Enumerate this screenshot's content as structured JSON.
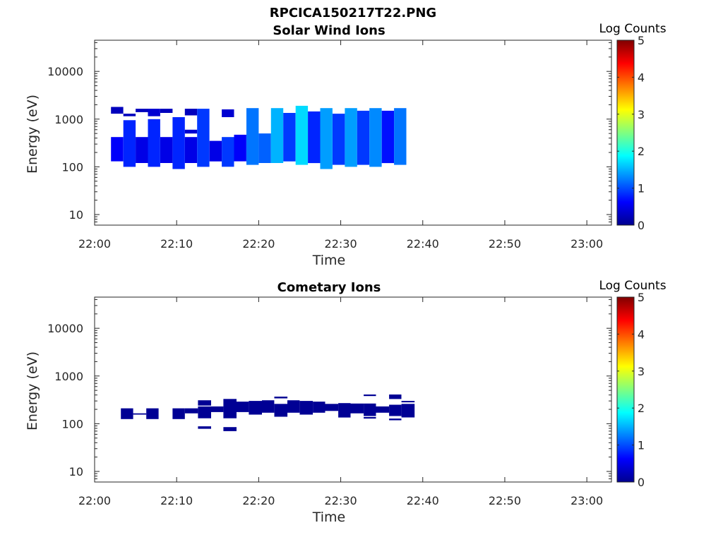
{
  "figure_title": "RPCICA150217T22.PNG",
  "chart_data": [
    {
      "type": "heatmap",
      "title": "Solar Wind Ions",
      "xlabel": "Time",
      "ylabel": "Energy (eV)",
      "x_ticks": [
        "22:00",
        "22:10",
        "22:20",
        "22:30",
        "22:40",
        "22:50",
        "23:00"
      ],
      "xlim": [
        "22:00",
        "23:03"
      ],
      "y_scale": "log",
      "y_ticks": [
        "10",
        "100",
        "1000",
        "10000"
      ],
      "ylim": [
        6,
        45000
      ],
      "colorbar": {
        "label": "Log Counts",
        "min": 0,
        "max": 5,
        "ticks": [
          "0",
          "1",
          "2",
          "3",
          "4",
          "5"
        ],
        "colormap": "jet"
      },
      "cells": [
        {
          "t0": "22:02",
          "t1": "22:03.5",
          "e0": 130,
          "e1": 420,
          "v": 0.6
        },
        {
          "t0": "22:02",
          "t1": "22:03.5",
          "e0": 1300,
          "e1": 1800,
          "v": 0.3
        },
        {
          "t0": "22:03.5",
          "t1": "22:05",
          "e0": 100,
          "e1": 950,
          "v": 0.8
        },
        {
          "t0": "22:03.5",
          "t1": "22:05",
          "e0": 1150,
          "e1": 1300,
          "v": 0.3
        },
        {
          "t0": "22:05",
          "t1": "22:06.5",
          "e0": 120,
          "e1": 420,
          "v": 0.5
        },
        {
          "t0": "22:05",
          "t1": "22:06.5",
          "e0": 1400,
          "e1": 1650,
          "v": 0.3
        },
        {
          "t0": "22:06.5",
          "t1": "22:08",
          "e0": 100,
          "e1": 1000,
          "v": 0.8
        },
        {
          "t0": "22:06.5",
          "t1": "22:08",
          "e0": 1150,
          "e1": 1650,
          "v": 0.4
        },
        {
          "t0": "22:08",
          "t1": "22:09.5",
          "e0": 120,
          "e1": 420,
          "v": 0.5
        },
        {
          "t0": "22:08",
          "t1": "22:09.5",
          "e0": 1350,
          "e1": 1650,
          "v": 0.3
        },
        {
          "t0": "22:09.5",
          "t1": "22:11",
          "e0": 90,
          "e1": 1100,
          "v": 0.8
        },
        {
          "t0": "22:11",
          "t1": "22:12.5",
          "e0": 120,
          "e1": 420,
          "v": 0.5
        },
        {
          "t0": "22:11",
          "t1": "22:12.5",
          "e0": 500,
          "e1": 600,
          "v": 0.4
        },
        {
          "t0": "22:11",
          "t1": "22:12.5",
          "e0": 1200,
          "e1": 1650,
          "v": 0.3
        },
        {
          "t0": "22:12.5",
          "t1": "22:14",
          "e0": 100,
          "e1": 1650,
          "v": 0.9
        },
        {
          "t0": "22:14",
          "t1": "22:15.5",
          "e0": 130,
          "e1": 350,
          "v": 0.5
        },
        {
          "t0": "22:15.5",
          "t1": "22:17",
          "e0": 100,
          "e1": 420,
          "v": 0.9
        },
        {
          "t0": "22:15.5",
          "t1": "22:17",
          "e0": 1100,
          "e1": 1600,
          "v": 0.4
        },
        {
          "t0": "22:17",
          "t1": "22:18.5",
          "e0": 130,
          "e1": 470,
          "v": 0.6
        },
        {
          "t0": "22:18.5",
          "t1": "22:20",
          "e0": 110,
          "e1": 1700,
          "v": 1.2
        },
        {
          "t0": "22:20",
          "t1": "22:21.5",
          "e0": 120,
          "e1": 500,
          "v": 1.1
        },
        {
          "t0": "22:21.5",
          "t1": "22:23",
          "e0": 120,
          "e1": 1700,
          "v": 1.5
        },
        {
          "t0": "22:23",
          "t1": "22:24.5",
          "e0": 130,
          "e1": 1350,
          "v": 0.9
        },
        {
          "t0": "22:24.5",
          "t1": "22:26",
          "e0": 110,
          "e1": 1900,
          "v": 1.7
        },
        {
          "t0": "22:26",
          "t1": "22:27.5",
          "e0": 120,
          "e1": 1450,
          "v": 0.8
        },
        {
          "t0": "22:27.5",
          "t1": "22:29",
          "e0": 90,
          "e1": 1700,
          "v": 1.4
        },
        {
          "t0": "22:29",
          "t1": "22:30.5",
          "e0": 110,
          "e1": 1300,
          "v": 0.9
        },
        {
          "t0": "22:30.5",
          "t1": "22:32",
          "e0": 100,
          "e1": 1700,
          "v": 1.4
        },
        {
          "t0": "22:32",
          "t1": "22:33.5",
          "e0": 110,
          "e1": 1500,
          "v": 0.9
        },
        {
          "t0": "22:33.5",
          "t1": "22:35",
          "e0": 100,
          "e1": 1700,
          "v": 1.3
        },
        {
          "t0": "22:35",
          "t1": "22:36.5",
          "e0": 120,
          "e1": 1500,
          "v": 0.7
        },
        {
          "t0": "22:36.5",
          "t1": "22:38",
          "e0": 110,
          "e1": 1700,
          "v": 1.2
        }
      ]
    },
    {
      "type": "heatmap",
      "title": "Cometary Ions",
      "xlabel": "Time",
      "ylabel": "Energy (eV)",
      "x_ticks": [
        "22:00",
        "22:10",
        "22:20",
        "22:30",
        "22:40",
        "22:50",
        "23:00"
      ],
      "xlim": [
        "22:00",
        "23:03"
      ],
      "y_scale": "log",
      "y_ticks": [
        "10",
        "100",
        "1000",
        "10000"
      ],
      "ylim": [
        6,
        45000
      ],
      "colorbar": {
        "label": "Log Counts",
        "min": 0,
        "max": 5,
        "ticks": [
          "0",
          "1",
          "2",
          "3",
          "4",
          "5"
        ],
        "colormap": "jet"
      },
      "cells": [
        {
          "t0": "22:03.2",
          "t1": "22:04.7",
          "e0": 125,
          "e1": 210,
          "v": 0.1
        },
        {
          "t0": "22:04.7",
          "t1": "22:06.3",
          "e0": 155,
          "e1": 165,
          "v": 0.1
        },
        {
          "t0": "22:06.3",
          "t1": "22:07.8",
          "e0": 125,
          "e1": 210,
          "v": 0.1
        },
        {
          "t0": "22:09.5",
          "t1": "22:11",
          "e0": 125,
          "e1": 210,
          "v": 0.1
        },
        {
          "t0": "22:11",
          "t1": "22:12.6",
          "e0": 165,
          "e1": 210,
          "v": 0.1
        },
        {
          "t0": "22:12.6",
          "t1": "22:14.2",
          "e0": 130,
          "e1": 230,
          "v": 0.1
        },
        {
          "t0": "22:12.6",
          "t1": "22:14.2",
          "e0": 240,
          "e1": 310,
          "v": 0.1
        },
        {
          "t0": "22:12.6",
          "t1": "22:14.2",
          "e0": 78,
          "e1": 88,
          "v": 0.1
        },
        {
          "t0": "22:14.2",
          "t1": "22:15.7",
          "e0": 175,
          "e1": 230,
          "v": 0.1
        },
        {
          "t0": "22:15.7",
          "t1": "22:17.3",
          "e0": 130,
          "e1": 330,
          "v": 0.1
        },
        {
          "t0": "22:15.7",
          "t1": "22:17.3",
          "e0": 70,
          "e1": 85,
          "v": 0.1
        },
        {
          "t0": "22:17.3",
          "t1": "22:18.8",
          "e0": 175,
          "e1": 290,
          "v": 0.1
        },
        {
          "t0": "22:18.8",
          "t1": "22:20.4",
          "e0": 155,
          "e1": 300,
          "v": 0.1
        },
        {
          "t0": "22:20.4",
          "t1": "22:21.9",
          "e0": 170,
          "e1": 310,
          "v": 0.1
        },
        {
          "t0": "22:21.9",
          "t1": "22:23.5",
          "e0": 140,
          "e1": 260,
          "v": 0.1
        },
        {
          "t0": "22:21.9",
          "t1": "22:23.5",
          "e0": 340,
          "e1": 370,
          "v": 0.1
        },
        {
          "t0": "22:23.5",
          "t1": "22:25",
          "e0": 170,
          "e1": 310,
          "v": 0.1
        },
        {
          "t0": "22:25",
          "t1": "22:26.6",
          "e0": 155,
          "e1": 300,
          "v": 0.1
        },
        {
          "t0": "22:26.6",
          "t1": "22:28.1",
          "e0": 170,
          "e1": 290,
          "v": 0.1
        },
        {
          "t0": "22:28.1",
          "t1": "22:29.7",
          "e0": 185,
          "e1": 260,
          "v": 0.1
        },
        {
          "t0": "22:29.7",
          "t1": "22:31.2",
          "e0": 135,
          "e1": 270,
          "v": 0.1
        },
        {
          "t0": "22:31.2",
          "t1": "22:32.8",
          "e0": 165,
          "e1": 265,
          "v": 0.1
        },
        {
          "t0": "22:32.8",
          "t1": "22:34.3",
          "e0": 145,
          "e1": 265,
          "v": 0.1
        },
        {
          "t0": "22:32.8",
          "t1": "22:34.3",
          "e0": 380,
          "e1": 410,
          "v": 0.1
        },
        {
          "t0": "22:32.8",
          "t1": "22:34.3",
          "e0": 128,
          "e1": 138,
          "v": 0.1
        },
        {
          "t0": "22:34.3",
          "t1": "22:35.9",
          "e0": 170,
          "e1": 230,
          "v": 0.1
        },
        {
          "t0": "22:35.9",
          "t1": "22:37.4",
          "e0": 145,
          "e1": 250,
          "v": 0.1
        },
        {
          "t0": "22:35.9",
          "t1": "22:37.4",
          "e0": 330,
          "e1": 410,
          "v": 0.1
        },
        {
          "t0": "22:35.9",
          "t1": "22:37.4",
          "e0": 118,
          "e1": 128,
          "v": 0.1
        },
        {
          "t0": "22:37.4",
          "t1": "22:39",
          "e0": 135,
          "e1": 260,
          "v": 0.1
        },
        {
          "t0": "22:37.4",
          "t1": "22:39",
          "e0": 280,
          "e1": 300,
          "v": 0.1
        }
      ]
    }
  ]
}
